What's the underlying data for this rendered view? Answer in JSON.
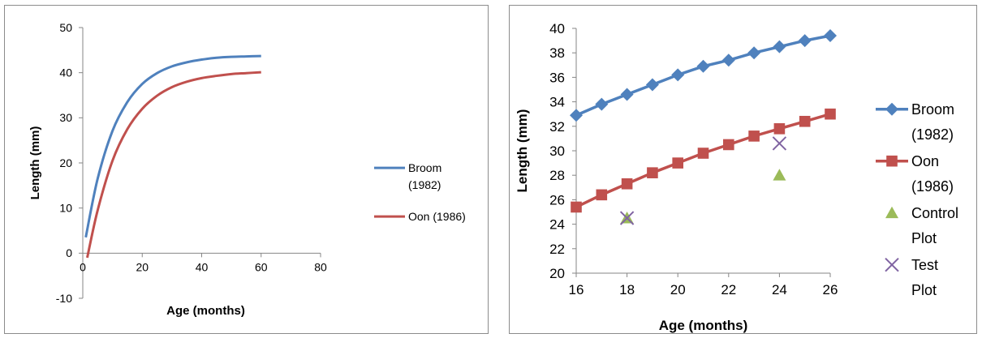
{
  "chart_data": [
    {
      "type": "line",
      "title": "",
      "xlabel": "Age (months)",
      "ylabel": "Length (mm)",
      "xlim": [
        0,
        80
      ],
      "ylim": [
        -10,
        50
      ],
      "x_ticks": [
        "0",
        "20",
        "40",
        "60",
        "80"
      ],
      "y_ticks": [
        "-10",
        "0",
        "10",
        "20",
        "30",
        "40",
        "50"
      ],
      "grid": false,
      "legend_position": "right",
      "series": [
        {
          "name": "Broom (1982)",
          "legend_lines": [
            "Broom",
            "(1982)"
          ],
          "color": "#4F81BD",
          "x": [
            1,
            5,
            10,
            15,
            20,
            25,
            30,
            35,
            40,
            45,
            50,
            55,
            60
          ],
          "y": [
            3.5,
            16.5,
            27.1,
            33.5,
            37.5,
            39.9,
            41.4,
            42.3,
            42.9,
            43.3,
            43.5,
            43.6,
            43.7
          ]
        },
        {
          "name": "Oon (1986)",
          "legend_lines": [
            "Oon (1986)"
          ],
          "color": "#C0504D",
          "x": [
            1.5,
            5,
            10,
            15,
            20,
            25,
            30,
            35,
            40,
            45,
            50,
            55,
            60
          ],
          "y": [
            -1,
            9.5,
            20.5,
            27.5,
            32.0,
            34.9,
            36.8,
            38.0,
            38.8,
            39.3,
            39.7,
            39.9,
            40.1
          ]
        }
      ]
    },
    {
      "type": "line",
      "title": "",
      "xlabel": "Age (months)",
      "ylabel": "Length (mm)",
      "xlim": [
        16,
        26
      ],
      "ylim": [
        20,
        40
      ],
      "x_ticks": [
        "16",
        "18",
        "20",
        "22",
        "24",
        "26"
      ],
      "y_ticks": [
        "20",
        "22",
        "24",
        "26",
        "28",
        "30",
        "32",
        "34",
        "36",
        "38",
        "40"
      ],
      "grid": false,
      "legend_position": "right",
      "series": [
        {
          "name": "Broom (1982)",
          "legend_lines": [
            "Broom",
            "(1982)"
          ],
          "color": "#4F81BD",
          "marker": "diamond",
          "line": true,
          "x": [
            16,
            17,
            18,
            19,
            20,
            21,
            22,
            23,
            24,
            25,
            26
          ],
          "y": [
            32.9,
            33.8,
            34.6,
            35.4,
            36.2,
            36.9,
            37.4,
            38.0,
            38.5,
            39.0,
            39.4
          ]
        },
        {
          "name": "Oon (1986)",
          "legend_lines": [
            "Oon",
            "(1986)"
          ],
          "color": "#C0504D",
          "marker": "square",
          "line": true,
          "x": [
            16,
            17,
            18,
            19,
            20,
            21,
            22,
            23,
            24,
            25,
            26
          ],
          "y": [
            25.4,
            26.4,
            27.3,
            28.2,
            29.0,
            29.8,
            30.5,
            31.2,
            31.8,
            32.4,
            33.0
          ]
        },
        {
          "name": "Control Plot",
          "legend_lines": [
            "Control",
            "Plot"
          ],
          "color": "#9BBB59",
          "marker": "triangle",
          "line": false,
          "x": [
            18,
            24
          ],
          "y": [
            24.5,
            28.0
          ]
        },
        {
          "name": "Test Plot",
          "legend_lines": [
            "Test",
            "Plot"
          ],
          "color": "#8064A2",
          "marker": "x",
          "line": false,
          "x": [
            18,
            24
          ],
          "y": [
            24.5,
            30.6
          ]
        }
      ]
    }
  ]
}
